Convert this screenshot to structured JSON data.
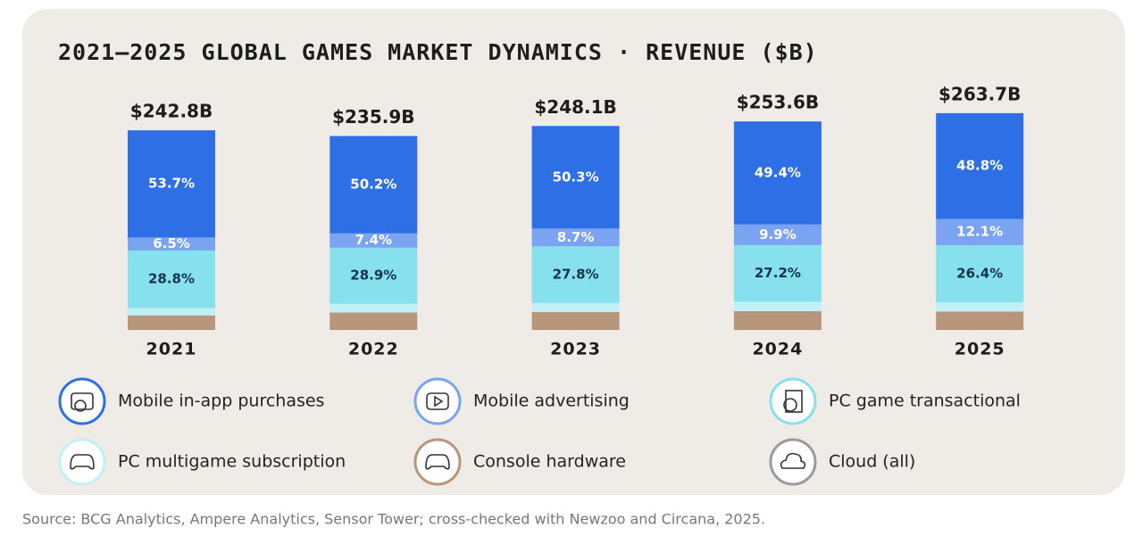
{
  "chart_data": {
    "type": "stacked-bar",
    "title": "2021–2025 GLOBAL GAMES MARKET DYNAMICS · REVENUE ($B)",
    "categories": [
      "2021",
      "2022",
      "2023",
      "2024",
      "2025"
    ],
    "totals": {
      "values": [
        242.8,
        235.9,
        248.1,
        253.6,
        263.7
      ],
      "value_labels": [
        "$242.8B",
        "$235.9B",
        "$248.1B",
        "$253.6B",
        "$263.7B"
      ]
    },
    "series": [
      {
        "name": "Mobile in-app purchases",
        "color": "#2f6fe6",
        "values": [
          53.7,
          50.2,
          50.3,
          49.4,
          48.8
        ],
        "value_labels": [
          "53.7%",
          "50.2%",
          "50.3%",
          "49.4%",
          "48.8%"
        ]
      },
      {
        "name": "Mobile advertising",
        "color": "#7aa3f2",
        "values": [
          6.5,
          7.4,
          8.7,
          9.9,
          12.1
        ],
        "value_labels": [
          "6.5%",
          "7.4%",
          "8.7%",
          "9.9%",
          "12.1%"
        ]
      },
      {
        "name": "PC game transactional",
        "color": "#86e0ee",
        "values": [
          28.8,
          28.9,
          27.8,
          27.2,
          26.4
        ],
        "value_labels": [
          "28.8%",
          "28.9%",
          "27.8%",
          "27.2%",
          "26.4%"
        ]
      },
      {
        "name": "PC multigame subscription",
        "color": "#bff1f6",
        "values": [
          3.7,
          4.5,
          4.4,
          4.5,
          4.2
        ]
      },
      {
        "name": "Console hardware",
        "color": "#b8967b",
        "values": [
          7.3,
          9.0,
          8.8,
          9.0,
          8.5
        ]
      },
      {
        "name": "Cloud (all)",
        "color": "#9b9b9b",
        "values": [
          null,
          null,
          null,
          null,
          null
        ]
      }
    ],
    "source": "Source: BCG Analytics, Ampere Analytics, Sensor Tower; cross-checked with Newzoo and Circana, 2025."
  }
}
